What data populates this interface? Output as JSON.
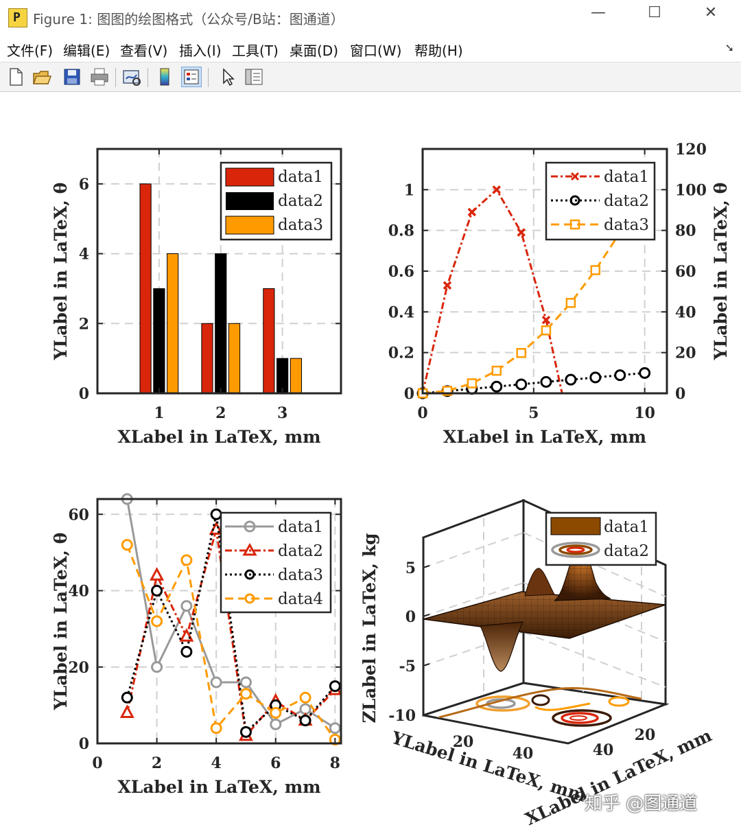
{
  "window": {
    "title": "Figure 1: 图图的绘图格式（公众号/B站：图通道）",
    "app_icon_glyph": "P",
    "controls": {
      "minimize": "—",
      "maximize": "☐",
      "close": "✕"
    }
  },
  "menu": [
    "文件(F)",
    "编辑(E)",
    "查看(V)",
    "插入(I)",
    "工具(T)",
    "桌面(D)",
    "窗口(W)",
    "帮助(H)"
  ],
  "toolbar": {
    "items": [
      "new-figure-icon",
      "open-file-icon",
      "save-icon",
      "print-icon",
      "link-plot-icon",
      "colorbar-icon",
      "legend-icon",
      "pointer-arrow-icon",
      "property-inspector-icon"
    ],
    "active": "legend-icon"
  },
  "colors": {
    "red": "#d9260b",
    "black": "#000000",
    "orange": "#ff9b00",
    "gray": "#999999",
    "brown": "#8c4a00"
  },
  "watermark": "知乎 @图通道",
  "chart_data": [
    {
      "type": "bar",
      "categories": [
        "1",
        "2",
        "3"
      ],
      "series": [
        {
          "name": "data1",
          "values": [
            6,
            2,
            3
          ]
        },
        {
          "name": "data2",
          "values": [
            3,
            4,
            1
          ]
        },
        {
          "name": "data3",
          "values": [
            4,
            2,
            1
          ]
        }
      ],
      "xlim": [
        0,
        3.95
      ],
      "ylim": [
        0,
        7
      ],
      "xticks": [
        "1",
        "2",
        "3"
      ],
      "yticks": [
        "0",
        "2",
        "4",
        "6"
      ],
      "xlabel": "XLabel in LaTeX, mm",
      "ylabel": "YLabel in LaTeX, θ",
      "grid": true,
      "legend": "top-right"
    },
    {
      "type": "line",
      "series": [
        {
          "name": "data1",
          "axis": "left",
          "x": [
            0,
            1.11,
            2.22,
            3.33,
            4.44,
            5.56,
            6.28
          ],
          "y": [
            0,
            0.53,
            0.89,
            1.0,
            0.79,
            0.36,
            0
          ]
        },
        {
          "name": "data2",
          "axis": "left",
          "x": [
            0,
            1.11,
            2.22,
            3.33,
            4.44,
            5.56,
            6.67,
            7.78,
            8.89,
            10
          ],
          "y": [
            0,
            0.011,
            0.022,
            0.033,
            0.044,
            0.056,
            0.067,
            0.078,
            0.089,
            0.1
          ]
        },
        {
          "name": "data3",
          "axis": "right",
          "x": [
            0,
            1.11,
            2.22,
            3.33,
            4.44,
            5.56,
            6.67,
            7.78,
            8.89
          ],
          "y": [
            0,
            1.2,
            4.9,
            11.1,
            19.8,
            30.9,
            44.4,
            60.5,
            79
          ]
        }
      ],
      "xlim": [
        0,
        11
      ],
      "ylim": [
        0,
        1.2
      ],
      "ylim_right": [
        0,
        120
      ],
      "xticks": [
        "0",
        "5",
        "10"
      ],
      "yticks": [
        "0",
        "0.2",
        "0.4",
        "0.6",
        "0.8",
        "1"
      ],
      "yticks_right": [
        "0",
        "20",
        "40",
        "60",
        "80",
        "100",
        "120"
      ],
      "xlabel": "XLabel in LaTeX, mm",
      "ylabel_right": "YLabel in LaTeX, θ",
      "grid": true,
      "legend": "top-right"
    },
    {
      "type": "line",
      "series": [
        {
          "name": "data1",
          "x": [
            1,
            2,
            3,
            4,
            5,
            6,
            7,
            8
          ],
          "y": [
            64,
            20,
            36,
            16,
            16,
            5,
            9,
            4
          ]
        },
        {
          "name": "data2",
          "x": [
            1,
            2,
            3,
            4,
            5,
            6,
            7,
            8
          ],
          "y": [
            8,
            44,
            28,
            56,
            2,
            11,
            6,
            14
          ]
        },
        {
          "name": "data3",
          "x": [
            1,
            2,
            3,
            4,
            5,
            6,
            7,
            8
          ],
          "y": [
            12,
            40,
            24,
            60,
            3,
            10,
            6,
            15
          ]
        },
        {
          "name": "data4",
          "x": [
            1,
            2,
            3,
            4,
            5,
            6,
            7,
            8
          ],
          "y": [
            52,
            32,
            48,
            4,
            13,
            8,
            12,
            1
          ]
        }
      ],
      "xlim": [
        0,
        8.2
      ],
      "ylim": [
        0,
        64
      ],
      "xticks": [
        "0",
        "2",
        "4",
        "6",
        "8"
      ],
      "yticks": [
        "0",
        "20",
        "40",
        "60"
      ],
      "xlabel": "XLabel in LaTeX, mm",
      "ylabel": "YLabel in LaTeX, θ",
      "grid": true,
      "legend": "top-right"
    },
    {
      "type": "surface",
      "series": [
        {
          "name": "data1",
          "kind": "surface"
        },
        {
          "name": "data2",
          "kind": "contour"
        }
      ],
      "zlim": [
        -10,
        8
      ],
      "xticks": [
        "20",
        "40"
      ],
      "yticks": [
        "20",
        "40"
      ],
      "zticks": [
        "5",
        "0",
        "-5",
        "-10"
      ],
      "xlabel": "XLabel in LaTeX, mm",
      "ylabel": "YLabel in LaTeX, mm",
      "zlabel": "ZLabel in LaTeX, kg",
      "grid": true,
      "legend": "top-right"
    }
  ]
}
